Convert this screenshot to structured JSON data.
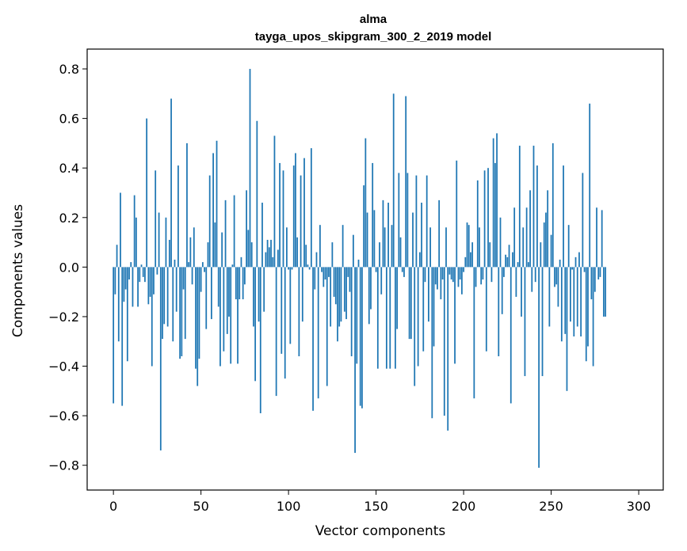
{
  "chart_data": {
    "type": "bar",
    "title": "alma",
    "subtitle": "tayga_upos_skipgram_300_2_2019 model",
    "xlabel": "Vector components",
    "ylabel": "Components values",
    "xlim": [
      -15,
      314
    ],
    "ylim": [
      -0.9,
      0.88
    ],
    "xticks": [
      0,
      50,
      100,
      150,
      200,
      250,
      300
    ],
    "xtick_labels": [
      "0",
      "50",
      "100",
      "150",
      "200",
      "250",
      "300"
    ],
    "yticks": [
      0.8,
      0.6,
      0.4,
      0.2,
      0.0,
      -0.2,
      -0.4,
      -0.6,
      -0.8
    ],
    "ytick_labels": [
      "0.8",
      "0.6",
      "0.4",
      "0.2",
      "0.0",
      "−0.2",
      "−0.4",
      "−0.6",
      "−0.8"
    ],
    "grid": false,
    "bar_color": "#1f77b4",
    "values": [
      -0.55,
      -0.11,
      0.09,
      -0.3,
      0.3,
      -0.56,
      -0.14,
      -0.09,
      -0.38,
      -0.05,
      0.02,
      -0.16,
      0.29,
      0.2,
      -0.16,
      -0.06,
      0.01,
      -0.04,
      -0.06,
      0.6,
      -0.15,
      -0.12,
      -0.4,
      -0.11,
      0.39,
      -0.03,
      0.22,
      -0.74,
      -0.29,
      -0.23,
      0.2,
      -0.24,
      0.11,
      0.68,
      -0.3,
      0.03,
      -0.18,
      0.41,
      -0.37,
      -0.36,
      -0.09,
      -0.29,
      0.5,
      0.02,
      0.12,
      -0.07,
      0.16,
      -0.41,
      -0.48,
      -0.37,
      -0.1,
      0.02,
      -0.02,
      -0.25,
      0.1,
      0.37,
      -0.21,
      0.46,
      0.18,
      0.51,
      -0.16,
      -0.4,
      0.14,
      -0.34,
      0.27,
      -0.27,
      -0.2,
      -0.39,
      0.01,
      0.29,
      -0.13,
      -0.39,
      -0.13,
      0.04,
      -0.13,
      -0.07,
      0.31,
      0.15,
      0.8,
      0.1,
      -0.24,
      -0.46,
      0.59,
      -0.22,
      -0.59,
      0.26,
      -0.18,
      0.06,
      0.11,
      0.08,
      0.11,
      0.04,
      0.53,
      -0.52,
      0.07,
      0.42,
      -0.35,
      0.39,
      -0.45,
      0.16,
      -0.01,
      -0.31,
      -0.01,
      0.41,
      0.46,
      0.12,
      -0.36,
      0.37,
      -0.22,
      0.44,
      0.09,
      0.01,
      -0.01,
      0.48,
      -0.58,
      -0.09,
      0.06,
      -0.53,
      0.17,
      -0.02,
      -0.08,
      -0.05,
      -0.48,
      -0.04,
      -0.24,
      0.1,
      -0.12,
      -0.15,
      -0.3,
      -0.24,
      -0.22,
      0.17,
      -0.18,
      -0.21,
      -0.04,
      -0.1,
      -0.36,
      0.13,
      -0.75,
      -0.39,
      0.03,
      -0.56,
      -0.57,
      0.33,
      0.52,
      0.22,
      -0.23,
      -0.17,
      0.42,
      0.23,
      -0.02,
      -0.41,
      0.1,
      -0.11,
      0.27,
      0.16,
      -0.41,
      0.26,
      -0.41,
      0.17,
      0.7,
      -0.41,
      -0.25,
      0.38,
      0.12,
      -0.02,
      -0.04,
      0.69,
      0.38,
      -0.29,
      -0.29,
      0.22,
      -0.48,
      0.37,
      -0.4,
      0.06,
      0.26,
      -0.34,
      -0.06,
      0.37,
      -0.22,
      0.16,
      -0.61,
      -0.32,
      -0.07,
      -0.09,
      0.27,
      -0.13,
      -0.05,
      -0.6,
      0.16,
      -0.66,
      -0.03,
      -0.05,
      -0.06,
      -0.39,
      0.43,
      -0.08,
      -0.05,
      -0.11,
      -0.02,
      0.04,
      0.18,
      0.17,
      0.06,
      0.1,
      -0.53,
      -0.08,
      0.35,
      0.16,
      -0.07,
      -0.05,
      0.39,
      -0.34,
      0.4,
      0.1,
      -0.06,
      0.52,
      0.42,
      0.54,
      -0.36,
      0.2,
      -0.19,
      -0.04,
      0.05,
      0.04,
      0.09,
      -0.55,
      0.06,
      0.24,
      -0.12,
      0.02,
      0.49,
      -0.2,
      0.16,
      -0.44,
      0.24,
      0.02,
      0.31,
      -0.1,
      0.49,
      -0.06,
      0.41,
      -0.81,
      0.1,
      -0.44,
      0.18,
      0.22,
      0.31,
      -0.24,
      0.13,
      0.5,
      -0.08,
      -0.07,
      -0.16,
      0.03,
      -0.3,
      0.41,
      -0.27,
      -0.5,
      0.17,
      -0.22,
      -0.01,
      -0.28,
      0.04,
      -0.24,
      0.06,
      -0.28,
      0.38,
      -0.02,
      -0.38,
      -0.32,
      0.66,
      -0.13,
      -0.4,
      -0.1,
      0.24,
      -0.05,
      -0.04,
      0.23,
      -0.2,
      -0.2
    ],
    "x_start": 0
  }
}
